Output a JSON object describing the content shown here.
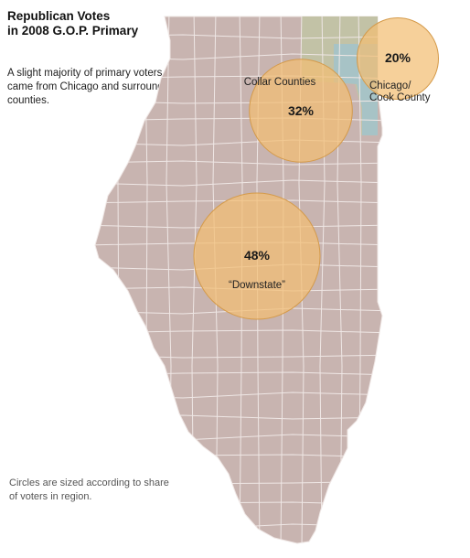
{
  "title_line1": "Republican Votes",
  "title_line2": "in 2008 G.O.P. Primary",
  "subtitle": "A slight majority of primary voters came from Chicago and surrounding counties.",
  "footnote": "Circles are sized according to share of voters in region.",
  "colors": {
    "state_fill": "#c8b4b0",
    "county_line": "#efe7e5",
    "collar_fill": "#c2c2a6",
    "cook_fill": "#a7c3c6",
    "bubble_fill": "#f2be73",
    "bubble_stroke": "#d49a4a"
  },
  "regions": [
    {
      "name": "Chicago/ Cook County",
      "label_line1": "Chicago/",
      "label_line2": "Cook County",
      "share_pct": 20,
      "share_label": "20%"
    },
    {
      "name": "Collar Counties",
      "label_line1": "Collar Counties",
      "share_pct": 32,
      "share_label": "32%"
    },
    {
      "name": "Downstate",
      "label_line1": "“Downstate”",
      "share_pct": 48,
      "share_label": "48%"
    }
  ]
}
